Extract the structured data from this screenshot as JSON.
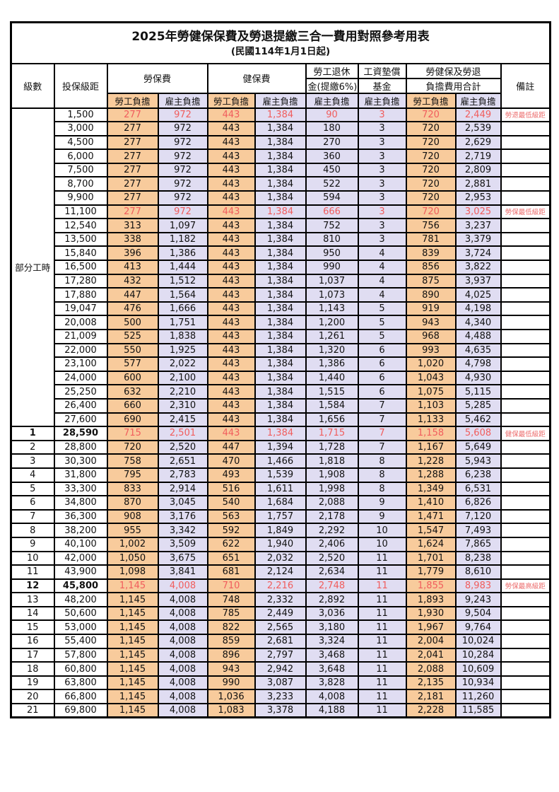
{
  "title": "2025年勞健保保費及勞退提繳三合一費用對照參考用表",
  "subtitle": "(民國114年1月1日起)",
  "columns": {
    "level": "級數",
    "salary_bracket": "投保級距",
    "labor_insurance": "勞保費",
    "health_insurance": "健保費",
    "pension_line1": "勞工退休",
    "pension_line2": "金(提繳6%)",
    "wage_arrears_fund_line1": "工資墊償",
    "wage_arrears_fund_line2": "基金",
    "grand_total_line1": "勞健保及勞退",
    "grand_total_line2": "負擔費用合計",
    "remark": "備註",
    "employee_share": "勞工負擔",
    "employer_share": "雇主負擔"
  },
  "part_time": {
    "label": "部分工時",
    "rowspan": 23
  },
  "colors": {
    "employee_share_bg": "#F8CB9C",
    "employer_share_bg": "#E0DDF2",
    "highlight_text": "#F15D5D",
    "remark_text": "#EC6B6B",
    "border": "#000000"
  },
  "rows": [
    {
      "level": "",
      "bracket": "1,500",
      "cells": [
        "277",
        "972",
        "443",
        "1,384",
        "90",
        "3",
        "720",
        "2,449"
      ],
      "remark": "勞退最低級距",
      "highlight": true,
      "bold": false
    },
    {
      "level": "",
      "bracket": "3,000",
      "cells": [
        "277",
        "972",
        "443",
        "1,384",
        "180",
        "3",
        "720",
        "2,539"
      ],
      "remark": "",
      "highlight": false,
      "bold": false
    },
    {
      "level": "",
      "bracket": "4,500",
      "cells": [
        "277",
        "972",
        "443",
        "1,384",
        "270",
        "3",
        "720",
        "2,629"
      ],
      "remark": "",
      "highlight": false,
      "bold": false
    },
    {
      "level": "",
      "bracket": "6,000",
      "cells": [
        "277",
        "972",
        "443",
        "1,384",
        "360",
        "3",
        "720",
        "2,719"
      ],
      "remark": "",
      "highlight": false,
      "bold": false
    },
    {
      "level": "",
      "bracket": "7,500",
      "cells": [
        "277",
        "972",
        "443",
        "1,384",
        "450",
        "3",
        "720",
        "2,809"
      ],
      "remark": "",
      "highlight": false,
      "bold": false
    },
    {
      "level": "",
      "bracket": "8,700",
      "cells": [
        "277",
        "972",
        "443",
        "1,384",
        "522",
        "3",
        "720",
        "2,881"
      ],
      "remark": "",
      "highlight": false,
      "bold": false
    },
    {
      "level": "",
      "bracket": "9,900",
      "cells": [
        "277",
        "972",
        "443",
        "1,384",
        "594",
        "3",
        "720",
        "2,953"
      ],
      "remark": "",
      "highlight": false,
      "bold": false
    },
    {
      "level": "",
      "bracket": "11,100",
      "cells": [
        "277",
        "972",
        "443",
        "1,384",
        "666",
        "3",
        "720",
        "3,025"
      ],
      "remark": "勞保最低級距",
      "highlight": true,
      "bold": false
    },
    {
      "level": "",
      "bracket": "12,540",
      "cells": [
        "313",
        "1,097",
        "443",
        "1,384",
        "752",
        "3",
        "756",
        "3,237"
      ],
      "remark": "",
      "highlight": false,
      "bold": false
    },
    {
      "level": "",
      "bracket": "13,500",
      "cells": [
        "338",
        "1,182",
        "443",
        "1,384",
        "810",
        "3",
        "781",
        "3,379"
      ],
      "remark": "",
      "highlight": false,
      "bold": false
    },
    {
      "level": "",
      "bracket": "15,840",
      "cells": [
        "396",
        "1,386",
        "443",
        "1,384",
        "950",
        "4",
        "839",
        "3,724"
      ],
      "remark": "",
      "highlight": false,
      "bold": false
    },
    {
      "level": "",
      "bracket": "16,500",
      "cells": [
        "413",
        "1,444",
        "443",
        "1,384",
        "990",
        "4",
        "856",
        "3,822"
      ],
      "remark": "",
      "highlight": false,
      "bold": false
    },
    {
      "level": "",
      "bracket": "17,280",
      "cells": [
        "432",
        "1,512",
        "443",
        "1,384",
        "1,037",
        "4",
        "875",
        "3,937"
      ],
      "remark": "",
      "highlight": false,
      "bold": false
    },
    {
      "level": "",
      "bracket": "17,880",
      "cells": [
        "447",
        "1,564",
        "443",
        "1,384",
        "1,073",
        "4",
        "890",
        "4,025"
      ],
      "remark": "",
      "highlight": false,
      "bold": false
    },
    {
      "level": "",
      "bracket": "19,047",
      "cells": [
        "476",
        "1,666",
        "443",
        "1,384",
        "1,143",
        "5",
        "919",
        "4,198"
      ],
      "remark": "",
      "highlight": false,
      "bold": false
    },
    {
      "level": "",
      "bracket": "20,008",
      "cells": [
        "500",
        "1,751",
        "443",
        "1,384",
        "1,200",
        "5",
        "943",
        "4,340"
      ],
      "remark": "",
      "highlight": false,
      "bold": false
    },
    {
      "level": "",
      "bracket": "21,009",
      "cells": [
        "525",
        "1,838",
        "443",
        "1,384",
        "1,261",
        "5",
        "968",
        "4,488"
      ],
      "remark": "",
      "highlight": false,
      "bold": false
    },
    {
      "level": "",
      "bracket": "22,000",
      "cells": [
        "550",
        "1,925",
        "443",
        "1,384",
        "1,320",
        "6",
        "993",
        "4,635"
      ],
      "remark": "",
      "highlight": false,
      "bold": false
    },
    {
      "level": "",
      "bracket": "23,100",
      "cells": [
        "577",
        "2,022",
        "443",
        "1,384",
        "1,386",
        "6",
        "1,020",
        "4,798"
      ],
      "remark": "",
      "highlight": false,
      "bold": false
    },
    {
      "level": "",
      "bracket": "24,000",
      "cells": [
        "600",
        "2,100",
        "443",
        "1,384",
        "1,440",
        "6",
        "1,043",
        "4,930"
      ],
      "remark": "",
      "highlight": false,
      "bold": false
    },
    {
      "level": "",
      "bracket": "25,250",
      "cells": [
        "632",
        "2,210",
        "443",
        "1,384",
        "1,515",
        "6",
        "1,075",
        "5,115"
      ],
      "remark": "",
      "highlight": false,
      "bold": false
    },
    {
      "level": "",
      "bracket": "26,400",
      "cells": [
        "660",
        "2,310",
        "443",
        "1,384",
        "1,584",
        "7",
        "1,103",
        "5,285"
      ],
      "remark": "",
      "highlight": false,
      "bold": false
    },
    {
      "level": "",
      "bracket": "27,600",
      "cells": [
        "690",
        "2,415",
        "443",
        "1,384",
        "1,656",
        "7",
        "1,133",
        "5,462"
      ],
      "remark": "",
      "highlight": false,
      "bold": false
    },
    {
      "level": "1",
      "bracket": "28,590",
      "cells": [
        "715",
        "2,501",
        "443",
        "1,384",
        "1,715",
        "7",
        "1,158",
        "5,608"
      ],
      "remark": "健保最低級距",
      "highlight": true,
      "bold": true
    },
    {
      "level": "2",
      "bracket": "28,800",
      "cells": [
        "720",
        "2,520",
        "447",
        "1,394",
        "1,728",
        "7",
        "1,167",
        "5,649"
      ],
      "remark": "",
      "highlight": false,
      "bold": false
    },
    {
      "level": "3",
      "bracket": "30,300",
      "cells": [
        "758",
        "2,651",
        "470",
        "1,466",
        "1,818",
        "8",
        "1,228",
        "5,943"
      ],
      "remark": "",
      "highlight": false,
      "bold": false
    },
    {
      "level": "4",
      "bracket": "31,800",
      "cells": [
        "795",
        "2,783",
        "493",
        "1,539",
        "1,908",
        "8",
        "1,288",
        "6,238"
      ],
      "remark": "",
      "highlight": false,
      "bold": false
    },
    {
      "level": "5",
      "bracket": "33,300",
      "cells": [
        "833",
        "2,914",
        "516",
        "1,611",
        "1,998",
        "8",
        "1,349",
        "6,531"
      ],
      "remark": "",
      "highlight": false,
      "bold": false
    },
    {
      "level": "6",
      "bracket": "34,800",
      "cells": [
        "870",
        "3,045",
        "540",
        "1,684",
        "2,088",
        "9",
        "1,410",
        "6,826"
      ],
      "remark": "",
      "highlight": false,
      "bold": false
    },
    {
      "level": "7",
      "bracket": "36,300",
      "cells": [
        "908",
        "3,176",
        "563",
        "1,757",
        "2,178",
        "9",
        "1,471",
        "7,120"
      ],
      "remark": "",
      "highlight": false,
      "bold": false
    },
    {
      "level": "8",
      "bracket": "38,200",
      "cells": [
        "955",
        "3,342",
        "592",
        "1,849",
        "2,292",
        "10",
        "1,547",
        "7,493"
      ],
      "remark": "",
      "highlight": false,
      "bold": false
    },
    {
      "level": "9",
      "bracket": "40,100",
      "cells": [
        "1,002",
        "3,509",
        "622",
        "1,940",
        "2,406",
        "10",
        "1,624",
        "7,865"
      ],
      "remark": "",
      "highlight": false,
      "bold": false
    },
    {
      "level": "10",
      "bracket": "42,000",
      "cells": [
        "1,050",
        "3,675",
        "651",
        "2,032",
        "2,520",
        "11",
        "1,701",
        "8,238"
      ],
      "remark": "",
      "highlight": false,
      "bold": false
    },
    {
      "level": "11",
      "bracket": "43,900",
      "cells": [
        "1,098",
        "3,841",
        "681",
        "2,124",
        "2,634",
        "11",
        "1,779",
        "8,610"
      ],
      "remark": "",
      "highlight": false,
      "bold": false
    },
    {
      "level": "12",
      "bracket": "45,800",
      "cells": [
        "1,145",
        "4,008",
        "710",
        "2,216",
        "2,748",
        "11",
        "1,855",
        "8,983"
      ],
      "remark": "勞保最高級距",
      "highlight": true,
      "bold": true
    },
    {
      "level": "13",
      "bracket": "48,200",
      "cells": [
        "1,145",
        "4,008",
        "748",
        "2,332",
        "2,892",
        "11",
        "1,893",
        "9,243"
      ],
      "remark": "",
      "highlight": false,
      "bold": false
    },
    {
      "level": "14",
      "bracket": "50,600",
      "cells": [
        "1,145",
        "4,008",
        "785",
        "2,449",
        "3,036",
        "11",
        "1,930",
        "9,504"
      ],
      "remark": "",
      "highlight": false,
      "bold": false
    },
    {
      "level": "15",
      "bracket": "53,000",
      "cells": [
        "1,145",
        "4,008",
        "822",
        "2,565",
        "3,180",
        "11",
        "1,967",
        "9,764"
      ],
      "remark": "",
      "highlight": false,
      "bold": false
    },
    {
      "level": "16",
      "bracket": "55,400",
      "cells": [
        "1,145",
        "4,008",
        "859",
        "2,681",
        "3,324",
        "11",
        "2,004",
        "10,024"
      ],
      "remark": "",
      "highlight": false,
      "bold": false
    },
    {
      "level": "17",
      "bracket": "57,800",
      "cells": [
        "1,145",
        "4,008",
        "896",
        "2,797",
        "3,468",
        "11",
        "2,041",
        "10,284"
      ],
      "remark": "",
      "highlight": false,
      "bold": false
    },
    {
      "level": "18",
      "bracket": "60,800",
      "cells": [
        "1,145",
        "4,008",
        "943",
        "2,942",
        "3,648",
        "11",
        "2,088",
        "10,609"
      ],
      "remark": "",
      "highlight": false,
      "bold": false
    },
    {
      "level": "19",
      "bracket": "63,800",
      "cells": [
        "1,145",
        "4,008",
        "990",
        "3,087",
        "3,828",
        "11",
        "2,135",
        "10,934"
      ],
      "remark": "",
      "highlight": false,
      "bold": false
    },
    {
      "level": "20",
      "bracket": "66,800",
      "cells": [
        "1,145",
        "4,008",
        "1,036",
        "3,233",
        "4,008",
        "11",
        "2,181",
        "11,260"
      ],
      "remark": "",
      "highlight": false,
      "bold": false
    },
    {
      "level": "21",
      "bracket": "69,800",
      "cells": [
        "1,145",
        "4,008",
        "1,083",
        "3,378",
        "4,188",
        "11",
        "2,228",
        "11,585"
      ],
      "remark": "",
      "highlight": false,
      "bold": false
    }
  ]
}
